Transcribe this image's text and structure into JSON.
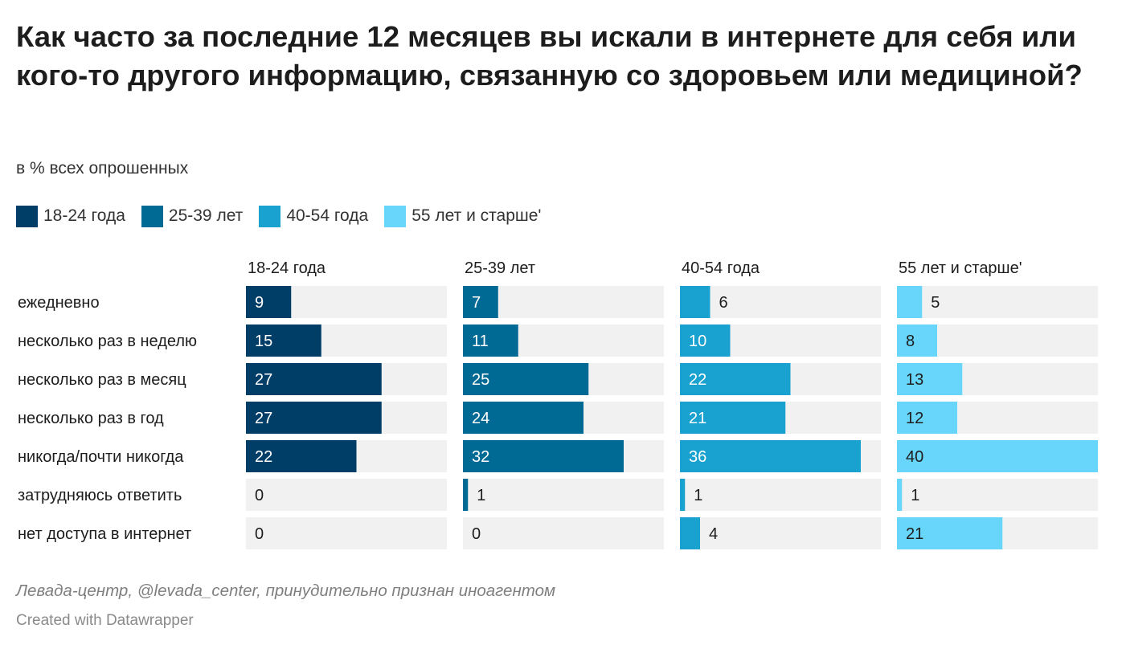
{
  "title": "Как часто за последние 12 месяцев вы искали в интернете для себя или кого-то другого информацию, связанную со здоровьем или медициной?",
  "subtitle": "в % всех опрошенных",
  "legend": [
    {
      "label": "18-24 года",
      "color": "#003e68"
    },
    {
      "label": "25-39 лет",
      "color": "#006994"
    },
    {
      "label": "40-54 года",
      "color": "#19a2cf"
    },
    {
      "label": "55 лет и старше'",
      "color": "#68d5fb"
    }
  ],
  "chart_data": {
    "type": "bar",
    "orientation": "horizontal",
    "layout": "small-multiples",
    "categories": [
      "ежедневно",
      "несколько раз в неделю",
      "несколько раз в месяц",
      "несколько раз в год",
      "никогда/почти никогда",
      "затрудняюсь ответить",
      "нет доступа в интернет"
    ],
    "series": [
      {
        "name": "18-24 года",
        "color": "#003e68",
        "values": [
          9,
          15,
          27,
          27,
          22,
          0,
          0
        ]
      },
      {
        "name": "25-39 лет",
        "color": "#006994",
        "values": [
          7,
          11,
          25,
          24,
          32,
          1,
          0
        ]
      },
      {
        "name": "40-54 года",
        "color": "#19a2cf",
        "values": [
          6,
          10,
          22,
          21,
          36,
          1,
          4
        ]
      },
      {
        "name": "55 лет и старше'",
        "color": "#68d5fb",
        "values": [
          5,
          8,
          13,
          12,
          40,
          1,
          21
        ]
      }
    ],
    "xlim": [
      0,
      40
    ],
    "track_color": "#f1f1f1"
  },
  "footer": {
    "source": "Левада-центр, @levada_center, принудительно признан иноагентом",
    "credit": "Created with Datawrapper"
  }
}
